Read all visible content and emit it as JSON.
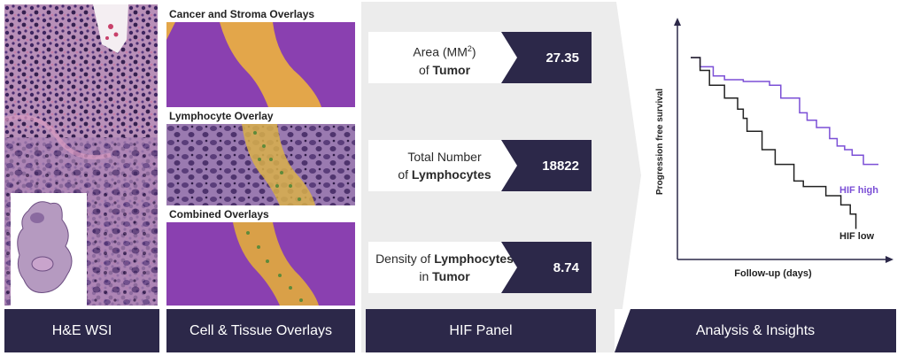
{
  "stages": {
    "wsi": "H&E WSI",
    "overlays": "Cell & Tissue Overlays",
    "hif": "HIF Panel",
    "analysis": "Analysis & Insights"
  },
  "overlays": {
    "cancer_stroma": "Cancer and Stroma Overlays",
    "lymphocyte": "Lymphocyte Overlay",
    "combined": "Combined Overlays"
  },
  "metrics": [
    {
      "line1": "Area (MM",
      "sup": "2",
      "line1_end": ")",
      "line2_pre": "of ",
      "line2_bold": "Tumor",
      "value": "27.35"
    },
    {
      "line1": "Total Number",
      "line2_pre": "of ",
      "line2_bold": "Lymphocytes",
      "value": "18822"
    },
    {
      "line1_pre": "Density of ",
      "line1_bold": "Lymphocytes",
      "line2_pre": "in ",
      "line2_bold": "Tumor",
      "value": "8.74"
    }
  ],
  "chart_data": {
    "type": "line",
    "xlabel": "Follow-up (days)",
    "ylabel": "Progression free survival",
    "series": [
      {
        "name": "HIF high",
        "color": "#7b4fd6",
        "points": [
          [
            0,
            1.0
          ],
          [
            0.05,
            0.95
          ],
          [
            0.12,
            0.9
          ],
          [
            0.18,
            0.88
          ],
          [
            0.28,
            0.87
          ],
          [
            0.42,
            0.85
          ],
          [
            0.48,
            0.78
          ],
          [
            0.58,
            0.7
          ],
          [
            0.62,
            0.66
          ],
          [
            0.67,
            0.62
          ],
          [
            0.74,
            0.56
          ],
          [
            0.78,
            0.52
          ],
          [
            0.82,
            0.5
          ],
          [
            0.86,
            0.47
          ],
          [
            0.92,
            0.42
          ],
          [
            1.0,
            0.42
          ]
        ]
      },
      {
        "name": "HIF low",
        "color": "#222222",
        "points": [
          [
            0,
            1.0
          ],
          [
            0.05,
            0.93
          ],
          [
            0.1,
            0.85
          ],
          [
            0.18,
            0.78
          ],
          [
            0.25,
            0.72
          ],
          [
            0.28,
            0.67
          ],
          [
            0.3,
            0.6
          ],
          [
            0.38,
            0.5
          ],
          [
            0.45,
            0.42
          ],
          [
            0.55,
            0.33
          ],
          [
            0.6,
            0.3
          ],
          [
            0.72,
            0.25
          ],
          [
            0.8,
            0.2
          ],
          [
            0.85,
            0.15
          ],
          [
            0.88,
            0.13
          ],
          [
            0.88,
            0.07
          ]
        ]
      }
    ],
    "colors": {
      "high": "#7b4fd6",
      "low": "#222222"
    }
  },
  "colors": {
    "navy": "#2c2849",
    "purple": "#7b4fd6"
  }
}
